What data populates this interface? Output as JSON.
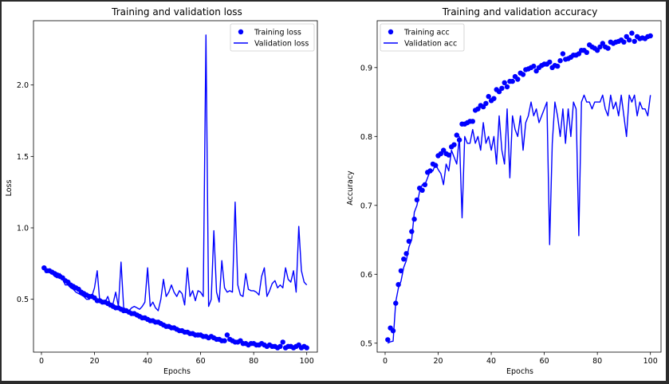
{
  "chart_data": [
    {
      "type": "line",
      "title": "Training and validation loss",
      "xlabel": "Epochs",
      "ylabel": "Loss",
      "xlim": [
        -3,
        104
      ],
      "ylim": [
        0.13,
        2.45
      ],
      "xticks": [
        0,
        20,
        40,
        60,
        80,
        100
      ],
      "xtick_labels": [
        "0",
        "20",
        "40",
        "60",
        "80",
        "100"
      ],
      "yticks": [
        0.5,
        1.0,
        1.5,
        2.0
      ],
      "ytick_labels": [
        "0.5",
        "1.0",
        "1.5",
        "2.0"
      ],
      "legend_position": "top-right",
      "legend": [
        "Training loss",
        "Validation loss"
      ],
      "color": "#0000ff",
      "series": [
        {
          "name": "Training loss",
          "style": "points",
          "x": [
            1,
            2,
            3,
            4,
            5,
            6,
            7,
            8,
            9,
            10,
            11,
            12,
            13,
            14,
            15,
            16,
            17,
            18,
            19,
            20,
            21,
            22,
            23,
            24,
            25,
            26,
            27,
            28,
            29,
            30,
            31,
            32,
            33,
            34,
            35,
            36,
            37,
            38,
            39,
            40,
            41,
            42,
            43,
            44,
            45,
            46,
            47,
            48,
            49,
            50,
            51,
            52,
            53,
            54,
            55,
            56,
            57,
            58,
            59,
            60,
            61,
            62,
            63,
            64,
            65,
            66,
            67,
            68,
            69,
            70,
            71,
            72,
            73,
            74,
            75,
            76,
            77,
            78,
            79,
            80,
            81,
            82,
            83,
            84,
            85,
            86,
            87,
            88,
            89,
            90,
            91,
            92,
            93,
            94,
            95,
            96,
            97,
            98,
            99,
            100
          ],
          "values": [
            0.72,
            0.7,
            0.7,
            0.69,
            0.68,
            0.67,
            0.66,
            0.65,
            0.63,
            0.62,
            0.6,
            0.59,
            0.58,
            0.57,
            0.55,
            0.54,
            0.53,
            0.52,
            0.52,
            0.51,
            0.49,
            0.49,
            0.48,
            0.48,
            0.47,
            0.46,
            0.45,
            0.44,
            0.44,
            0.43,
            0.42,
            0.42,
            0.41,
            0.4,
            0.4,
            0.39,
            0.38,
            0.37,
            0.37,
            0.36,
            0.35,
            0.35,
            0.34,
            0.34,
            0.33,
            0.32,
            0.31,
            0.31,
            0.3,
            0.3,
            0.29,
            0.28,
            0.28,
            0.27,
            0.27,
            0.26,
            0.26,
            0.25,
            0.25,
            0.25,
            0.24,
            0.24,
            0.23,
            0.24,
            0.23,
            0.22,
            0.22,
            0.21,
            0.21,
            0.25,
            0.22,
            0.21,
            0.2,
            0.2,
            0.21,
            0.19,
            0.19,
            0.18,
            0.19,
            0.19,
            0.18,
            0.18,
            0.19,
            0.18,
            0.17,
            0.18,
            0.17,
            0.17,
            0.16,
            0.17,
            0.2,
            0.16,
            0.17,
            0.17,
            0.16,
            0.17,
            0.18,
            0.16,
            0.17,
            0.16
          ]
        },
        {
          "name": "Validation loss",
          "style": "line",
          "x": [
            1,
            2,
            3,
            4,
            5,
            6,
            7,
            8,
            9,
            10,
            11,
            12,
            13,
            14,
            15,
            16,
            17,
            18,
            19,
            20,
            21,
            22,
            23,
            24,
            25,
            26,
            27,
            28,
            29,
            30,
            31,
            32,
            33,
            34,
            35,
            36,
            37,
            38,
            39,
            40,
            41,
            42,
            43,
            44,
            45,
            46,
            47,
            48,
            49,
            50,
            51,
            52,
            53,
            54,
            55,
            56,
            57,
            58,
            59,
            60,
            61,
            62,
            63,
            64,
            65,
            66,
            67,
            68,
            69,
            70,
            71,
            72,
            73,
            74,
            75,
            76,
            77,
            78,
            79,
            80,
            81,
            82,
            83,
            84,
            85,
            86,
            87,
            88,
            89,
            90,
            91,
            92,
            93,
            94,
            95,
            96,
            97,
            98,
            99,
            100
          ],
          "values": [
            0.72,
            0.7,
            0.69,
            0.68,
            0.66,
            0.65,
            0.68,
            0.64,
            0.6,
            0.6,
            0.58,
            0.57,
            0.55,
            0.54,
            0.53,
            0.52,
            0.5,
            0.5,
            0.52,
            0.58,
            0.7,
            0.48,
            0.47,
            0.48,
            0.52,
            0.46,
            0.47,
            0.55,
            0.45,
            0.76,
            0.44,
            0.43,
            0.42,
            0.44,
            0.45,
            0.44,
            0.43,
            0.45,
            0.48,
            0.72,
            0.45,
            0.48,
            0.44,
            0.42,
            0.5,
            0.64,
            0.52,
            0.55,
            0.6,
            0.55,
            0.52,
            0.56,
            0.54,
            0.46,
            0.72,
            0.52,
            0.56,
            0.49,
            0.56,
            0.55,
            0.52,
            2.35,
            0.45,
            0.5,
            0.98,
            0.55,
            0.48,
            0.77,
            0.58,
            0.55,
            0.56,
            0.55,
            1.18,
            0.6,
            0.53,
            0.52,
            0.68,
            0.57,
            0.56,
            0.56,
            0.55,
            0.53,
            0.66,
            0.72,
            0.52,
            0.56,
            0.61,
            0.63,
            0.58,
            0.6,
            0.58,
            0.72,
            0.64,
            0.62,
            0.7,
            0.55,
            1.01,
            0.7,
            0.62,
            0.6
          ]
        }
      ]
    },
    {
      "type": "line",
      "title": "Training and validation accuracy",
      "xlabel": "Epochs",
      "ylabel": "Accuracy",
      "xlim": [
        -3,
        104
      ],
      "ylim": [
        0.487,
        0.968
      ],
      "xticks": [
        0,
        20,
        40,
        60,
        80,
        100
      ],
      "xtick_labels": [
        "0",
        "20",
        "40",
        "60",
        "80",
        "100"
      ],
      "yticks": [
        0.5,
        0.6,
        0.7,
        0.8,
        0.9
      ],
      "ytick_labels": [
        "0.5",
        "0.6",
        "0.7",
        "0.8",
        "0.9"
      ],
      "legend_position": "top-left",
      "legend": [
        "Training acc",
        "Validation acc"
      ],
      "color": "#0000ff",
      "series": [
        {
          "name": "Training acc",
          "style": "points",
          "x": [
            1,
            2,
            3,
            4,
            5,
            6,
            7,
            8,
            9,
            10,
            11,
            12,
            13,
            14,
            15,
            16,
            17,
            18,
            19,
            20,
            21,
            22,
            23,
            24,
            25,
            26,
            27,
            28,
            29,
            30,
            31,
            32,
            33,
            34,
            35,
            36,
            37,
            38,
            39,
            40,
            41,
            42,
            43,
            44,
            45,
            46,
            47,
            48,
            49,
            50,
            51,
            52,
            53,
            54,
            55,
            56,
            57,
            58,
            59,
            60,
            61,
            62,
            63,
            64,
            65,
            66,
            67,
            68,
            69,
            70,
            71,
            72,
            73,
            74,
            75,
            76,
            77,
            78,
            79,
            80,
            81,
            82,
            83,
            84,
            85,
            86,
            87,
            88,
            89,
            90,
            91,
            92,
            93,
            94,
            95,
            96,
            97,
            98,
            99,
            100
          ],
          "values": [
            0.505,
            0.522,
            0.518,
            0.558,
            0.585,
            0.605,
            0.622,
            0.63,
            0.648,
            0.662,
            0.68,
            0.708,
            0.725,
            0.722,
            0.73,
            0.748,
            0.75,
            0.76,
            0.758,
            0.772,
            0.775,
            0.78,
            0.775,
            0.773,
            0.785,
            0.788,
            0.802,
            0.795,
            0.818,
            0.818,
            0.82,
            0.822,
            0.822,
            0.838,
            0.84,
            0.845,
            0.843,
            0.848,
            0.858,
            0.852,
            0.855,
            0.868,
            0.865,
            0.87,
            0.878,
            0.872,
            0.88,
            0.88,
            0.887,
            0.883,
            0.892,
            0.89,
            0.897,
            0.898,
            0.9,
            0.902,
            0.895,
            0.9,
            0.903,
            0.905,
            0.905,
            0.908,
            0.9,
            0.903,
            0.902,
            0.91,
            0.92,
            0.912,
            0.913,
            0.915,
            0.918,
            0.918,
            0.92,
            0.925,
            0.925,
            0.922,
            0.933,
            0.93,
            0.928,
            0.925,
            0.93,
            0.935,
            0.93,
            0.928,
            0.937,
            0.935,
            0.937,
            0.938,
            0.94,
            0.937,
            0.945,
            0.94,
            0.95,
            0.938,
            0.945,
            0.942,
            0.943,
            0.942,
            0.945,
            0.946
          ]
        },
        {
          "name": "Validation acc",
          "style": "line",
          "x": [
            1,
            2,
            3,
            4,
            5,
            6,
            7,
            8,
            9,
            10,
            11,
            12,
            13,
            14,
            15,
            16,
            17,
            18,
            19,
            20,
            21,
            22,
            23,
            24,
            25,
            26,
            27,
            28,
            29,
            30,
            31,
            32,
            33,
            34,
            35,
            36,
            37,
            38,
            39,
            40,
            41,
            42,
            43,
            44,
            45,
            46,
            47,
            48,
            49,
            50,
            51,
            52,
            53,
            54,
            55,
            56,
            57,
            58,
            59,
            60,
            61,
            62,
            63,
            64,
            65,
            66,
            67,
            68,
            69,
            70,
            71,
            72,
            73,
            74,
            75,
            76,
            77,
            78,
            79,
            80,
            81,
            82,
            83,
            84,
            85,
            86,
            87,
            88,
            89,
            90,
            91,
            92,
            93,
            94,
            95,
            96,
            97,
            98,
            99,
            100
          ],
          "values": [
            0.5,
            0.502,
            0.503,
            0.56,
            0.58,
            0.59,
            0.61,
            0.62,
            0.64,
            0.65,
            0.69,
            0.7,
            0.72,
            0.73,
            0.73,
            0.74,
            0.75,
            0.75,
            0.76,
            0.752,
            0.746,
            0.73,
            0.76,
            0.75,
            0.78,
            0.77,
            0.76,
            0.8,
            0.682,
            0.8,
            0.79,
            0.79,
            0.81,
            0.79,
            0.8,
            0.78,
            0.82,
            0.79,
            0.8,
            0.78,
            0.8,
            0.76,
            0.83,
            0.78,
            0.76,
            0.84,
            0.74,
            0.83,
            0.81,
            0.8,
            0.83,
            0.78,
            0.82,
            0.83,
            0.85,
            0.83,
            0.84,
            0.82,
            0.83,
            0.84,
            0.85,
            0.643,
            0.79,
            0.85,
            0.83,
            0.8,
            0.84,
            0.79,
            0.84,
            0.8,
            0.85,
            0.84,
            0.656,
            0.85,
            0.86,
            0.85,
            0.85,
            0.84,
            0.85,
            0.85,
            0.85,
            0.86,
            0.84,
            0.83,
            0.86,
            0.84,
            0.85,
            0.83,
            0.86,
            0.83,
            0.8,
            0.86,
            0.85,
            0.86,
            0.83,
            0.85,
            0.84,
            0.84,
            0.83,
            0.86
          ]
        }
      ]
    }
  ]
}
